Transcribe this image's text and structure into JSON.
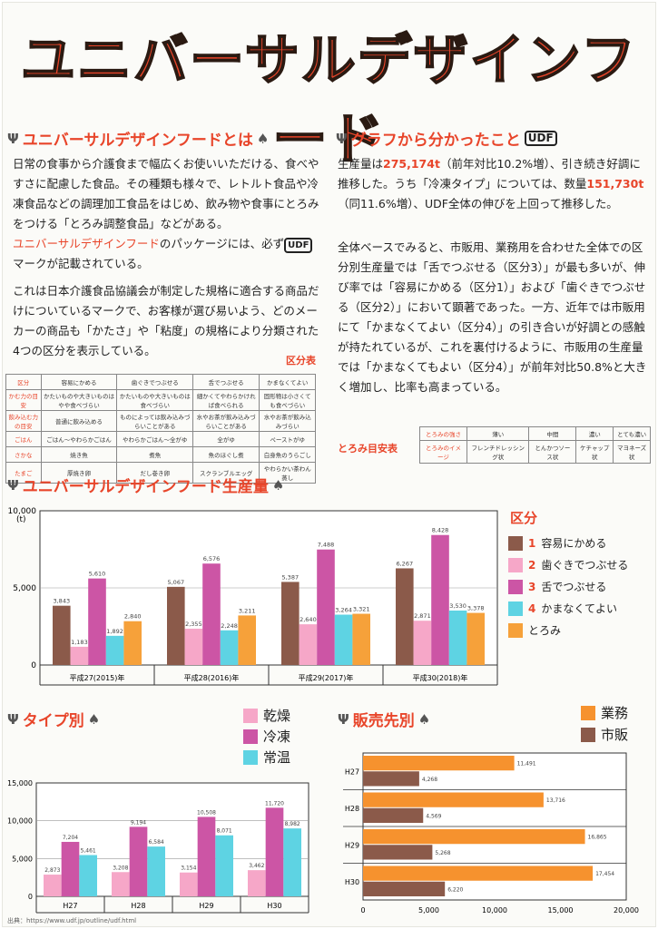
{
  "title": "ユニバーサルデザインフード",
  "udf_mark": "UDF",
  "sec1": {
    "title": "ユニバーサルデザインフードとは",
    "p1": "日常の食事から介護食まで幅広くお使いいただける、食べやすさに配慮した食品。その種類も様々で、レトルト食品や冷凍食品などの調理加工食品をはじめ、飲み物や食事にとろみをつける「とろみ調整食品」などがある。",
    "p2a": "ユニバーサルデザインフード",
    "p2b": "のパッケージには、必ず",
    "p2c": "マークが記載されている。",
    "p3": "これは日本介護食品協議会が制定した規格に適合する商品だけについているマークで、お客様が選び易いよう、どのメーカーの商品も「かたさ」や「粘度」の規格により分類された4つの区分を表示している。",
    "note": "区分表"
  },
  "kubun_table": [
    [
      "区分",
      "容易にかめる",
      "歯ぐきでつぶせる",
      "舌でつぶせる",
      "かまなくてよい"
    ],
    [
      "かむ力の目安",
      "かたいものや大きいものはやや食べづらい",
      "かたいものや大きいものは食べづらい",
      "細かくてやわらかければ食べられる",
      "固形物は小さくても食べづらい"
    ],
    [
      "飲み込む力の目安",
      "普通に飲み込める",
      "ものによっては飲み込みづらいことがある",
      "水やお茶が飲み込みづらいことがある",
      "水やお茶が飲み込みづらい"
    ],
    [
      "ごはん",
      "ごはん〜やわらかごはん",
      "やわらかごはん〜全がゆ",
      "全がゆ",
      "ペーストがゆ"
    ],
    [
      "さかな",
      "焼き魚",
      "煮魚",
      "魚のほぐし煮",
      "白身魚のうらごし"
    ],
    [
      "たまご",
      "厚焼き卵",
      "だし巻き卵",
      "スクランブルエッグ",
      "やわらかい茶わん蒸し"
    ]
  ],
  "sec2": {
    "title": "グラフから分かったこと",
    "p1a": "生産量は",
    "p1b": "275,174t",
    "p1c": "（前年対比10.2%増）、引き続き好調に推移した。うち「冷凍タイプ」については、数量",
    "p1d": "151,730t",
    "p1e": "（同11.6%増）、UDF全体の伸びを上回って推移した。",
    "p2": "全体ベースでみると、市販用、業務用を合わせた全体での区分別生産量では「舌でつぶせる（区分3）」が最も多いが、伸び率では「容易にかめる（区分1）」および「歯ぐきでつぶせる（区分2）」において顕著であった。一方、近年では市販用にて「かまなくてよい（区分4）」の引き合いが好調との感触が持たれているが、これを裏付けるように、市販用の生産量では「かまなくてもよい（区分4）」が前年対比50.8%と大きく増加し、比率も高まっている。",
    "toromi_label": "とろみ目安表"
  },
  "toromi_table": [
    [
      "とろみの強さ",
      "薄い",
      "中間",
      "濃い",
      "とても濃い"
    ],
    [
      "とろみのイメージ",
      "フレンチドレッシング状",
      "とんかつソース状",
      "ケチャップ状",
      "マヨネーズ状"
    ]
  ],
  "chart_data": [
    {
      "type": "bar",
      "title": "ユニバーサルデザインフード生産量",
      "ylabel": "(t)",
      "ylim": [
        0,
        10000
      ],
      "yticks": [
        "10,000",
        "5,000",
        "0"
      ],
      "categories": [
        "平成27(2015)年",
        "平成28(2016)年",
        "平成29(2017)年",
        "平成30(2018)年"
      ],
      "legend_title": "区分",
      "series": [
        {
          "name": "容易にかめる",
          "num": "1",
          "color": "#8b5a4a",
          "values": [
            3843,
            5067,
            5387,
            6267
          ],
          "labels": [
            "3,843",
            "5,067",
            "5,387",
            "6,267"
          ]
        },
        {
          "name": "歯ぐきでつぶせる",
          "num": "2",
          "color": "#f6a7c8",
          "values": [
            1183,
            2355,
            2640,
            2871
          ],
          "labels": [
            "1,183",
            "2,355",
            "2,640",
            "2,871"
          ]
        },
        {
          "name": "舌でつぶせる",
          "num": "3",
          "color": "#cc55a5",
          "values": [
            5610,
            6576,
            7488,
            8428
          ],
          "labels": [
            "5,610",
            "6,576",
            "7,488",
            "8,428"
          ]
        },
        {
          "name": "かまなくてよい",
          "num": "4",
          "color": "#5ed3e3",
          "values": [
            1892,
            2248,
            3264,
            3530
          ],
          "labels": [
            "1,892",
            "2,248",
            "3,264",
            "3,530"
          ]
        },
        {
          "name": "とろみ",
          "num": "",
          "color": "#f6a13a",
          "values": [
            2840,
            3211,
            3321,
            3378
          ],
          "labels": [
            "2,840",
            "3,211",
            "3,321",
            "3,378"
          ]
        }
      ]
    },
    {
      "type": "bar",
      "title": "タイプ別",
      "ylim": [
        0,
        15000
      ],
      "yticks": [
        "15,000",
        "10,000",
        "5,000",
        "0"
      ],
      "categories": [
        "H27",
        "H28",
        "H29",
        "H30"
      ],
      "series": [
        {
          "name": "乾燥",
          "color": "#f6a7c8",
          "values": [
            2873,
            3208,
            3154,
            3462
          ],
          "labels": [
            "2,873",
            "3,208",
            "3,154",
            "3,462"
          ]
        },
        {
          "name": "冷凍",
          "color": "#cc55a5",
          "values": [
            7204,
            9194,
            10508,
            11720
          ],
          "labels": [
            "7,204",
            "9,194",
            "10,508",
            "11,720"
          ]
        },
        {
          "name": "常温",
          "color": "#5ed3e3",
          "values": [
            5461,
            6584,
            8071,
            8982
          ],
          "labels": [
            "5,461",
            "6,584",
            "8,071",
            "8,982"
          ]
        }
      ]
    },
    {
      "type": "bar",
      "orientation": "horizontal",
      "title": "販売先別",
      "xlim": [
        0,
        20000
      ],
      "xticks": [
        "0",
        "5,000",
        "10,000",
        "15,000",
        "20,000"
      ],
      "categories": [
        "H27",
        "H28",
        "H29",
        "H30"
      ],
      "series": [
        {
          "name": "業務",
          "color": "#f6922e",
          "values": [
            11491,
            13716,
            16865,
            17454
          ],
          "labels": [
            "11,491",
            "13,716",
            "16,865",
            "17,454"
          ]
        },
        {
          "name": "市販",
          "color": "#8b5a4a",
          "values": [
            4268,
            4569,
            5268,
            6220
          ],
          "labels": [
            "4,268",
            "4,569",
            "5,268",
            "6,220"
          ]
        }
      ]
    }
  ],
  "footer": "出典：https://www.udf.jp/outline/udf.html"
}
